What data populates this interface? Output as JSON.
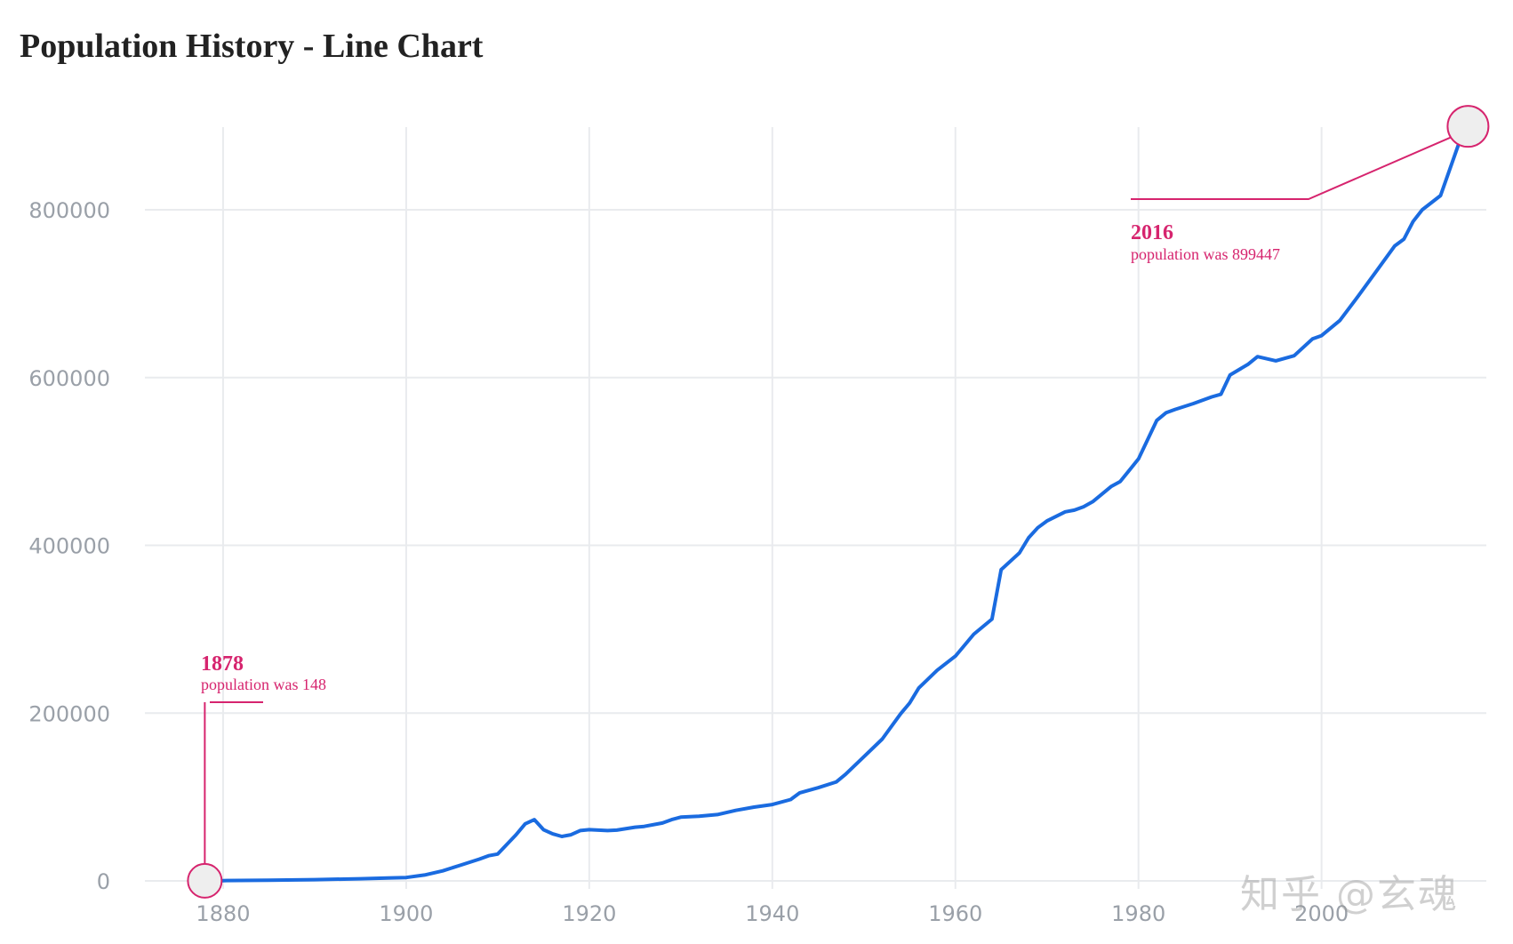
{
  "colors": {
    "line": "#1a6be0",
    "accent": "#d6246e",
    "grid": "#e9ebee",
    "marker_fill": "#eeeeee"
  },
  "watermark": "知乎 @玄魂",
  "chart_data": {
    "type": "line",
    "title": "Population History - Line Chart",
    "xlabel": "",
    "ylabel": "",
    "xlim": [
      1870,
      2018
    ],
    "ylim": [
      0,
      900000
    ],
    "x_ticks": [
      1880,
      1900,
      1920,
      1940,
      1960,
      1980,
      2000
    ],
    "y_ticks": [
      0,
      200000,
      400000,
      600000,
      800000
    ],
    "grid": true,
    "series": [
      {
        "name": "population",
        "x": [
          1878,
          1880,
          1885,
          1890,
          1895,
          1898,
          1900,
          1902,
          1904,
          1906,
          1908,
          1909,
          1910,
          1912,
          1913,
          1914,
          1915,
          1916,
          1917,
          1918,
          1919,
          1920,
          1922,
          1923,
          1925,
          1926,
          1928,
          1929,
          1930,
          1932,
          1934,
          1936,
          1938,
          1940,
          1942,
          1943,
          1945,
          1947,
          1948,
          1950,
          1952,
          1954,
          1955,
          1956,
          1958,
          1960,
          1962,
          1964,
          1965,
          1967,
          1968,
          1969,
          1970,
          1972,
          1973,
          1974,
          1975,
          1977,
          1978,
          1980,
          1982,
          1983,
          1984,
          1986,
          1988,
          1989,
          1990,
          1992,
          1993,
          1995,
          1997,
          1999,
          2000,
          2002,
          2004,
          2006,
          2008,
          2009,
          2010,
          2011,
          2013,
          2015,
          2016
        ],
        "values": [
          148,
          300,
          800,
          1500,
          2500,
          3500,
          4000,
          7000,
          12000,
          19000,
          26000,
          30000,
          32000,
          55000,
          68000,
          73000,
          61000,
          56000,
          53000,
          55000,
          60000,
          61000,
          60000,
          60500,
          64000,
          65000,
          69000,
          73000,
          76000,
          77000,
          79000,
          84000,
          88000,
          91000,
          97000,
          105000,
          111000,
          118000,
          127000,
          148000,
          169000,
          199000,
          212000,
          230000,
          251000,
          268000,
          294000,
          312000,
          371000,
          391000,
          409000,
          421000,
          429000,
          440000,
          442000,
          446000,
          452000,
          470000,
          476000,
          503000,
          549000,
          558000,
          562000,
          569000,
          577000,
          580000,
          603000,
          616000,
          625000,
          620000,
          626000,
          646000,
          650000,
          668000,
          697000,
          727000,
          757000,
          765000,
          786000,
          800000,
          817000,
          879000,
          899447
        ]
      }
    ],
    "annotations": [
      {
        "year": "1878",
        "text": "population was 148",
        "x": 1878,
        "y": 148
      },
      {
        "year": "2016",
        "text": "population was 899447",
        "x": 2016,
        "y": 899447
      }
    ]
  }
}
